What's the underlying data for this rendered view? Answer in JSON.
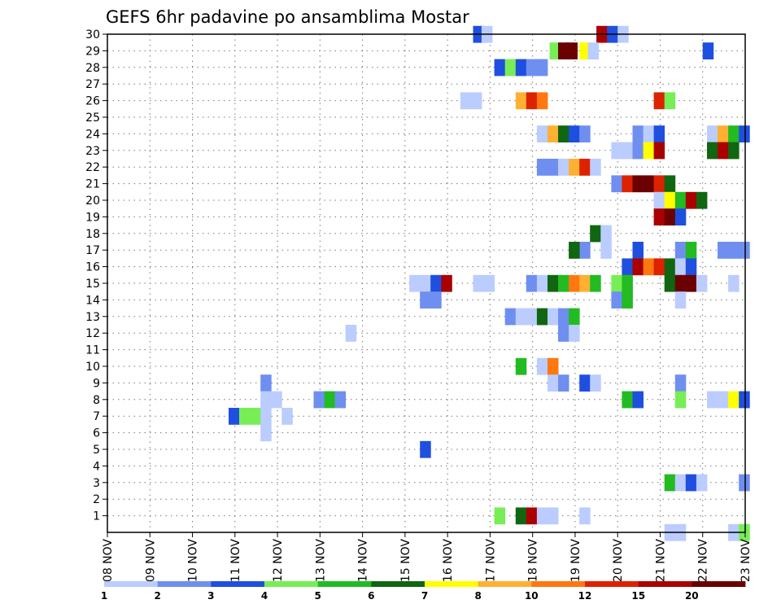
{
  "chart_data": {
    "type": "heatmap",
    "title": "GEFS 6hr padavine po ansamblima Mostar",
    "x_tick_labels": [
      "08 NOV",
      "09 NOV",
      "10 NOV",
      "11 NOV",
      "12 NOV",
      "13 NOV",
      "14 NOV",
      "15 NOV",
      "16 NOV",
      "17 NOV",
      "18 NOV",
      "19 NOV",
      "20 NOV",
      "21 NOV",
      "22 NOV",
      "23 NOV"
    ],
    "y_tick_labels": [
      "1",
      "2",
      "3",
      "4",
      "5",
      "6",
      "7",
      "8",
      "9",
      "10",
      "11",
      "12",
      "13",
      "14",
      "15",
      "16",
      "17",
      "18",
      "19",
      "20",
      "21",
      "22",
      "23",
      "24",
      "25",
      "26",
      "27",
      "28",
      "29",
      "30"
    ],
    "xlim_days": [
      0,
      15
    ],
    "ylim": [
      0,
      30
    ],
    "grid": true,
    "legend": {
      "placement": "bottom",
      "colors": [
        "#bbccff",
        "#6f8ff0",
        "#1f4fdf",
        "#77ee55",
        "#22bb22",
        "#116611",
        "#ffff00",
        "#ffb032",
        "#ff7711",
        "#dd2200",
        "#aa0000",
        "#6a0000"
      ],
      "labels": [
        "1",
        "2",
        "3",
        "4",
        "5",
        "6",
        "7",
        "8",
        "10",
        "12",
        "15",
        "20"
      ]
    },
    "cells": [
      {
        "day": 8.6,
        "ens": 30,
        "c": 3
      },
      {
        "day": 8.8,
        "ens": 30,
        "c": 1
      },
      {
        "day": 11.5,
        "ens": 30,
        "c": 11
      },
      {
        "day": 11.75,
        "ens": 30,
        "c": 3
      },
      {
        "day": 12.0,
        "ens": 30,
        "c": 1
      },
      {
        "day": 10.4,
        "ens": 29,
        "c": 4
      },
      {
        "day": 10.6,
        "ens": 29,
        "c": 12
      },
      {
        "day": 10.8,
        "ens": 29,
        "c": 12
      },
      {
        "day": 11.1,
        "ens": 29,
        "c": 7
      },
      {
        "day": 11.3,
        "ens": 29,
        "c": 1
      },
      {
        "day": 14.0,
        "ens": 29,
        "c": 3
      },
      {
        "day": 9.1,
        "ens": 28,
        "c": 3
      },
      {
        "day": 9.35,
        "ens": 28,
        "c": 4
      },
      {
        "day": 9.6,
        "ens": 28,
        "c": 3
      },
      {
        "day": 9.85,
        "ens": 28,
        "c": 2
      },
      {
        "day": 10.1,
        "ens": 28,
        "c": 2
      },
      {
        "day": 8.3,
        "ens": 26,
        "c": 1
      },
      {
        "day": 8.55,
        "ens": 26,
        "c": 1
      },
      {
        "day": 9.6,
        "ens": 26,
        "c": 8
      },
      {
        "day": 9.85,
        "ens": 26,
        "c": 10
      },
      {
        "day": 10.1,
        "ens": 26,
        "c": 9
      },
      {
        "day": 12.85,
        "ens": 26,
        "c": 10
      },
      {
        "day": 13.1,
        "ens": 26,
        "c": 4
      },
      {
        "day": 10.1,
        "ens": 24,
        "c": 1
      },
      {
        "day": 10.35,
        "ens": 24,
        "c": 8
      },
      {
        "day": 10.6,
        "ens": 24,
        "c": 6
      },
      {
        "day": 10.85,
        "ens": 24,
        "c": 3
      },
      {
        "day": 11.1,
        "ens": 24,
        "c": 2
      },
      {
        "day": 12.35,
        "ens": 24,
        "c": 2
      },
      {
        "day": 12.6,
        "ens": 24,
        "c": 1
      },
      {
        "day": 12.85,
        "ens": 24,
        "c": 3
      },
      {
        "day": 14.1,
        "ens": 24,
        "c": 1
      },
      {
        "day": 14.35,
        "ens": 24,
        "c": 8
      },
      {
        "day": 14.6,
        "ens": 24,
        "c": 5
      },
      {
        "day": 14.85,
        "ens": 24,
        "c": 3
      },
      {
        "day": 11.85,
        "ens": 23,
        "c": 1
      },
      {
        "day": 12.1,
        "ens": 23,
        "c": 1
      },
      {
        "day": 12.35,
        "ens": 23,
        "c": 2
      },
      {
        "day": 12.6,
        "ens": 23,
        "c": 7
      },
      {
        "day": 12.85,
        "ens": 23,
        "c": 11
      },
      {
        "day": 14.1,
        "ens": 23,
        "c": 6
      },
      {
        "day": 14.35,
        "ens": 23,
        "c": 11
      },
      {
        "day": 14.6,
        "ens": 23,
        "c": 6
      },
      {
        "day": 10.1,
        "ens": 22,
        "c": 2
      },
      {
        "day": 10.35,
        "ens": 22,
        "c": 2
      },
      {
        "day": 10.6,
        "ens": 22,
        "c": 1
      },
      {
        "day": 10.85,
        "ens": 22,
        "c": 8
      },
      {
        "day": 11.1,
        "ens": 22,
        "c": 10
      },
      {
        "day": 11.35,
        "ens": 22,
        "c": 1
      },
      {
        "day": 11.85,
        "ens": 21,
        "c": 2
      },
      {
        "day": 12.1,
        "ens": 21,
        "c": 10
      },
      {
        "day": 12.35,
        "ens": 21,
        "c": 12
      },
      {
        "day": 12.6,
        "ens": 21,
        "c": 12
      },
      {
        "day": 12.85,
        "ens": 21,
        "c": 10
      },
      {
        "day": 13.1,
        "ens": 21,
        "c": 6
      },
      {
        "day": 12.85,
        "ens": 20,
        "c": 1
      },
      {
        "day": 13.1,
        "ens": 20,
        "c": 7
      },
      {
        "day": 13.35,
        "ens": 20,
        "c": 5
      },
      {
        "day": 13.6,
        "ens": 20,
        "c": 11
      },
      {
        "day": 13.85,
        "ens": 20,
        "c": 6
      },
      {
        "day": 12.85,
        "ens": 19,
        "c": 11
      },
      {
        "day": 13.1,
        "ens": 19,
        "c": 12
      },
      {
        "day": 13.35,
        "ens": 19,
        "c": 3
      },
      {
        "day": 11.35,
        "ens": 18,
        "c": 6
      },
      {
        "day": 11.6,
        "ens": 18,
        "c": 1
      },
      {
        "day": 11.1,
        "ens": 17,
        "c": 2
      },
      {
        "day": 10.85,
        "ens": 17,
        "c": 6
      },
      {
        "day": 11.6,
        "ens": 17,
        "c": 1
      },
      {
        "day": 12.35,
        "ens": 17,
        "c": 3
      },
      {
        "day": 13.35,
        "ens": 17,
        "c": 2
      },
      {
        "day": 13.6,
        "ens": 17,
        "c": 5
      },
      {
        "day": 14.35,
        "ens": 17,
        "c": 2
      },
      {
        "day": 14.6,
        "ens": 17,
        "c": 2
      },
      {
        "day": 14.85,
        "ens": 17,
        "c": 2
      },
      {
        "day": 12.1,
        "ens": 16,
        "c": 3
      },
      {
        "day": 12.35,
        "ens": 16,
        "c": 11
      },
      {
        "day": 12.6,
        "ens": 16,
        "c": 9
      },
      {
        "day": 12.85,
        "ens": 16,
        "c": 10
      },
      {
        "day": 13.1,
        "ens": 16,
        "c": 6
      },
      {
        "day": 13.35,
        "ens": 16,
        "c": 1
      },
      {
        "day": 13.6,
        "ens": 16,
        "c": 3
      },
      {
        "day": 7.1,
        "ens": 15,
        "c": 1
      },
      {
        "day": 7.35,
        "ens": 15,
        "c": 1
      },
      {
        "day": 7.6,
        "ens": 15,
        "c": 3
      },
      {
        "day": 7.85,
        "ens": 15,
        "c": 11
      },
      {
        "day": 8.6,
        "ens": 15,
        "c": 1
      },
      {
        "day": 8.85,
        "ens": 15,
        "c": 1
      },
      {
        "day": 9.85,
        "ens": 15,
        "c": 2
      },
      {
        "day": 10.1,
        "ens": 15,
        "c": 1
      },
      {
        "day": 10.35,
        "ens": 15,
        "c": 6
      },
      {
        "day": 10.6,
        "ens": 15,
        "c": 5
      },
      {
        "day": 10.85,
        "ens": 15,
        "c": 9
      },
      {
        "day": 11.1,
        "ens": 15,
        "c": 8
      },
      {
        "day": 11.35,
        "ens": 15,
        "c": 5
      },
      {
        "day": 11.85,
        "ens": 15,
        "c": 4
      },
      {
        "day": 12.1,
        "ens": 15,
        "c": 5
      },
      {
        "day": 13.1,
        "ens": 15,
        "c": 6
      },
      {
        "day": 13.35,
        "ens": 15,
        "c": 12
      },
      {
        "day": 13.6,
        "ens": 15,
        "c": 12
      },
      {
        "day": 13.85,
        "ens": 15,
        "c": 1
      },
      {
        "day": 14.6,
        "ens": 15,
        "c": 1
      },
      {
        "day": 7.35,
        "ens": 14,
        "c": 2
      },
      {
        "day": 7.6,
        "ens": 14,
        "c": 2
      },
      {
        "day": 11.85,
        "ens": 14,
        "c": 2
      },
      {
        "day": 12.1,
        "ens": 14,
        "c": 5
      },
      {
        "day": 13.35,
        "ens": 14,
        "c": 1
      },
      {
        "day": 9.35,
        "ens": 13,
        "c": 2
      },
      {
        "day": 9.6,
        "ens": 13,
        "c": 1
      },
      {
        "day": 9.85,
        "ens": 13,
        "c": 1
      },
      {
        "day": 10.1,
        "ens": 13,
        "c": 6
      },
      {
        "day": 10.35,
        "ens": 13,
        "c": 1
      },
      {
        "day": 10.6,
        "ens": 13,
        "c": 2
      },
      {
        "day": 10.85,
        "ens": 13,
        "c": 5
      },
      {
        "day": 5.6,
        "ens": 12,
        "c": 1
      },
      {
        "day": 10.6,
        "ens": 12,
        "c": 2
      },
      {
        "day": 10.85,
        "ens": 12,
        "c": 1
      },
      {
        "day": 9.6,
        "ens": 10,
        "c": 5
      },
      {
        "day": 10.1,
        "ens": 10,
        "c": 1
      },
      {
        "day": 10.35,
        "ens": 10,
        "c": 9
      },
      {
        "day": 3.6,
        "ens": 9,
        "c": 2
      },
      {
        "day": 10.35,
        "ens": 9,
        "c": 1
      },
      {
        "day": 10.6,
        "ens": 9,
        "c": 2
      },
      {
        "day": 11.1,
        "ens": 9,
        "c": 3
      },
      {
        "day": 11.35,
        "ens": 9,
        "c": 1
      },
      {
        "day": 13.35,
        "ens": 9,
        "c": 2
      },
      {
        "day": 3.6,
        "ens": 8,
        "c": 1
      },
      {
        "day": 3.85,
        "ens": 8,
        "c": 1
      },
      {
        "day": 4.85,
        "ens": 8,
        "c": 2
      },
      {
        "day": 5.1,
        "ens": 8,
        "c": 5
      },
      {
        "day": 5.35,
        "ens": 8,
        "c": 2
      },
      {
        "day": 12.1,
        "ens": 8,
        "c": 5
      },
      {
        "day": 12.35,
        "ens": 8,
        "c": 3
      },
      {
        "day": 13.35,
        "ens": 8,
        "c": 4
      },
      {
        "day": 14.1,
        "ens": 8,
        "c": 1
      },
      {
        "day": 14.35,
        "ens": 8,
        "c": 1
      },
      {
        "day": 14.6,
        "ens": 8,
        "c": 7
      },
      {
        "day": 14.85,
        "ens": 8,
        "c": 3
      },
      {
        "day": 2.85,
        "ens": 7,
        "c": 3
      },
      {
        "day": 3.1,
        "ens": 7,
        "c": 4
      },
      {
        "day": 3.35,
        "ens": 7,
        "c": 4
      },
      {
        "day": 3.6,
        "ens": 7,
        "c": 1
      },
      {
        "day": 4.1,
        "ens": 7,
        "c": 1
      },
      {
        "day": 3.6,
        "ens": 6,
        "c": 1
      },
      {
        "day": 7.35,
        "ens": 5,
        "c": 3
      },
      {
        "day": 13.1,
        "ens": 3,
        "c": 5
      },
      {
        "day": 13.35,
        "ens": 3,
        "c": 1
      },
      {
        "day": 13.6,
        "ens": 3,
        "c": 3
      },
      {
        "day": 13.85,
        "ens": 3,
        "c": 1
      },
      {
        "day": 14.85,
        "ens": 3,
        "c": 2
      },
      {
        "day": 9.1,
        "ens": 1,
        "c": 4
      },
      {
        "day": 9.6,
        "ens": 1,
        "c": 6
      },
      {
        "day": 9.85,
        "ens": 1,
        "c": 11
      },
      {
        "day": 10.1,
        "ens": 1,
        "c": 1
      },
      {
        "day": 10.35,
        "ens": 1,
        "c": 1
      },
      {
        "day": 11.1,
        "ens": 1,
        "c": 1
      },
      {
        "day": 13.1,
        "ens": 0,
        "c": 1
      },
      {
        "day": 13.35,
        "ens": 0,
        "c": 1
      },
      {
        "day": 14.6,
        "ens": 0,
        "c": 1
      },
      {
        "day": 14.85,
        "ens": 0,
        "c": 4
      }
    ]
  }
}
